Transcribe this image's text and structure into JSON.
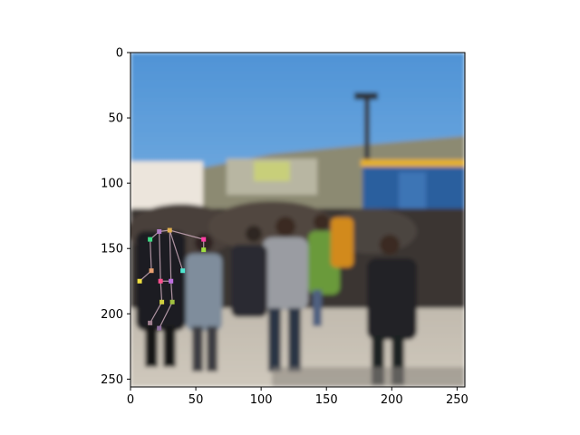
{
  "chart_data": {
    "type": "image",
    "xlim": [
      0,
      256
    ],
    "ylim": [
      256,
      0
    ],
    "x_ticks": [
      "0",
      "50",
      "100",
      "150",
      "200",
      "250"
    ],
    "y_ticks": [
      "0",
      "50",
      "100",
      "150",
      "200",
      "250"
    ],
    "x_tick_values": [
      0,
      50,
      100,
      150,
      200,
      250
    ],
    "y_tick_values": [
      0,
      50,
      100,
      150,
      200,
      250
    ],
    "grid": false,
    "image_description": "blurred photo of a crowd of people standing outdoors under a blue sky with a light pole and buildings",
    "keypoints": [
      {
        "x": 15,
        "y": 143,
        "color": "#3ddc84"
      },
      {
        "x": 22,
        "y": 137,
        "color": "#b07cc6"
      },
      {
        "x": 30,
        "y": 136,
        "color": "#e0b050"
      },
      {
        "x": 56,
        "y": 143,
        "color": "#ff3ea5"
      },
      {
        "x": 56,
        "y": 151,
        "color": "#a0e040"
      },
      {
        "x": 40,
        "y": 167,
        "color": "#4de6d0"
      },
      {
        "x": 16,
        "y": 167,
        "color": "#e8a070"
      },
      {
        "x": 7,
        "y": 175,
        "color": "#f0e040"
      },
      {
        "x": 23,
        "y": 175,
        "color": "#ff5090"
      },
      {
        "x": 31,
        "y": 175,
        "color": "#c070e0"
      },
      {
        "x": 24,
        "y": 191,
        "color": "#d0d040"
      },
      {
        "x": 32,
        "y": 191,
        "color": "#a0c040"
      },
      {
        "x": 15,
        "y": 207,
        "color": "#a08090"
      },
      {
        "x": 22,
        "y": 211,
        "color": "#9070a0"
      }
    ],
    "skeleton": [
      [
        0,
        1
      ],
      [
        1,
        2
      ],
      [
        2,
        3
      ],
      [
        3,
        4
      ],
      [
        0,
        6
      ],
      [
        6,
        7
      ],
      [
        1,
        8
      ],
      [
        2,
        9
      ],
      [
        8,
        10
      ],
      [
        9,
        11
      ],
      [
        10,
        12
      ],
      [
        11,
        13
      ],
      [
        2,
        5
      ],
      [
        8,
        9
      ]
    ]
  }
}
